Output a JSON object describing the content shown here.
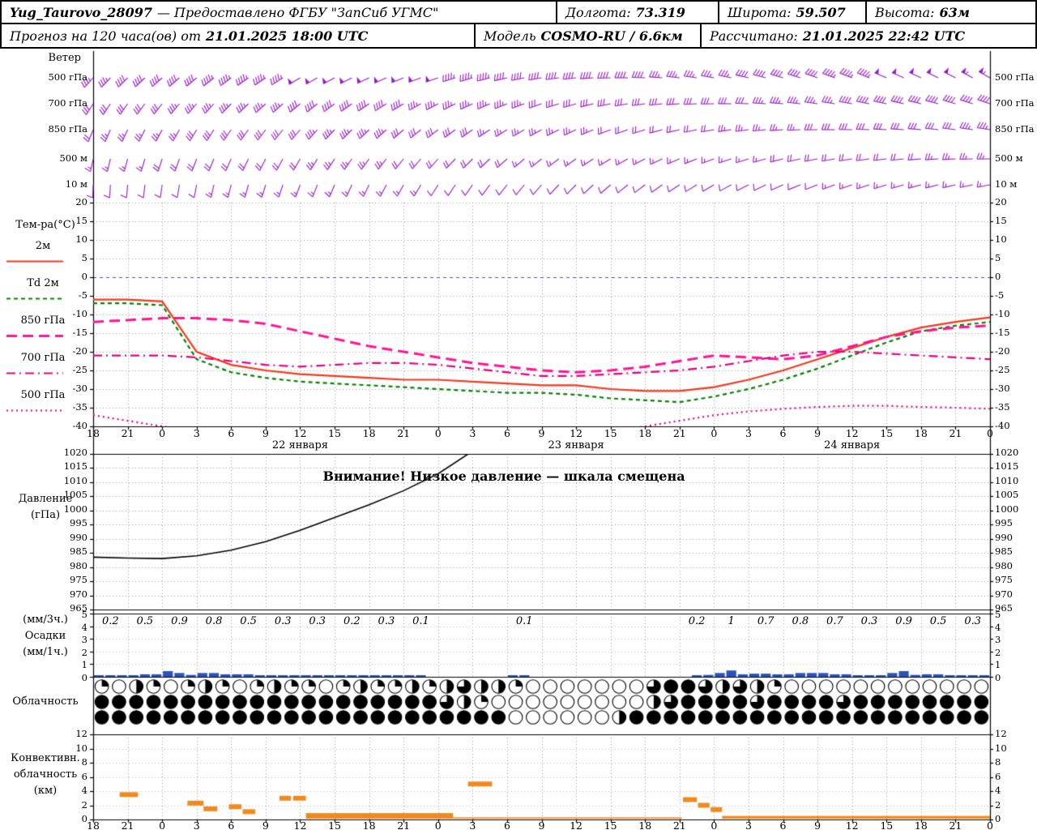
{
  "header": {
    "row1": {
      "station": "Yug_Taurovo_28097",
      "provider": "— Предоставлено ФГБУ \"ЗапСиб УГМС\"",
      "lon_label": "Долгота:",
      "lon_value": "73.319",
      "lat_label": "Широта:",
      "lat_value": "59.507",
      "alt_label": "Высота:",
      "alt_value": "63м"
    },
    "row2": {
      "forecast_label": "Прогноз на 120 часа(ов) от",
      "forecast_value": "21.01.2025 18:00 UTC",
      "model_label": "Модель",
      "model_value": "COSMO-RU / 6.6км",
      "calc_label": "Рассчитано:",
      "calc_value": "21.01.2025 22:42 UTC"
    }
  },
  "axis": {
    "hour_labels": [
      "18",
      "21",
      "0",
      "3",
      "6",
      "9",
      "12",
      "15",
      "18",
      "21",
      "0",
      "3",
      "6",
      "9",
      "12",
      "15",
      "18",
      "21",
      "0",
      "3",
      "6",
      "9",
      "12",
      "15",
      "18",
      "21",
      "0"
    ],
    "date_labels": [
      {
        "text": "22 января",
        "hour": 18
      },
      {
        "text": "23 января",
        "hour": 42
      },
      {
        "text": "24 января",
        "hour": 66
      }
    ]
  },
  "chart_data": [
    {
      "type": "wind-barbs",
      "panel": "wind",
      "title": "Ветер",
      "color": "#9318c8",
      "levels": [
        {
          "label": "500 гПа",
          "dirs": [
            222,
            225,
            228,
            230,
            233,
            236,
            239,
            242,
            245,
            248,
            251,
            254,
            257,
            260,
            264,
            268,
            272,
            276,
            280,
            283,
            286,
            289,
            291,
            293,
            295,
            297,
            299
          ],
          "speeds_kt": [
            35,
            38,
            40,
            42,
            45,
            45,
            48,
            50,
            52,
            50,
            48,
            45,
            42,
            40,
            40,
            38,
            38,
            35,
            35,
            38,
            40,
            42,
            45,
            48,
            50,
            52,
            54
          ]
        },
        {
          "label": "700 гПа",
          "dirs": [
            212,
            215,
            218,
            221,
            224,
            227,
            230,
            233,
            236,
            239,
            242,
            245,
            248,
            251,
            254,
            258,
            262,
            266,
            269,
            272,
            275,
            278,
            280,
            282,
            284,
            286,
            288
          ],
          "speeds_kt": [
            28,
            30,
            32,
            34,
            35,
            36,
            38,
            40,
            40,
            38,
            36,
            35,
            34,
            32,
            30,
            30,
            28,
            28,
            30,
            32,
            34,
            36,
            38,
            38,
            40,
            42,
            42
          ]
        },
        {
          "label": "850 гПа",
          "dirs": [
            202,
            205,
            208,
            211,
            214,
            217,
            220,
            223,
            226,
            229,
            232,
            235,
            238,
            241,
            245,
            249,
            253,
            257,
            260,
            263,
            266,
            269,
            271,
            273,
            275,
            277,
            279
          ],
          "speeds_kt": [
            22,
            24,
            26,
            28,
            30,
            30,
            32,
            34,
            34,
            32,
            30,
            28,
            26,
            25,
            24,
            22,
            20,
            20,
            22,
            24,
            26,
            28,
            30,
            30,
            32,
            32,
            34
          ]
        },
        {
          "label": "500 м",
          "dirs": [
            192,
            195,
            198,
            201,
            204,
            207,
            210,
            213,
            216,
            219,
            222,
            225,
            228,
            231,
            235,
            239,
            243,
            247,
            250,
            253,
            256,
            259,
            261,
            263,
            265,
            267,
            269
          ],
          "speeds_kt": [
            15,
            16,
            18,
            20,
            20,
            22,
            22,
            24,
            24,
            22,
            20,
            18,
            18,
            16,
            15,
            14,
            14,
            14,
            15,
            16,
            18,
            20,
            20,
            22,
            22,
            24,
            24
          ]
        },
        {
          "label": "10 м",
          "dirs": [
            182,
            185,
            188,
            191,
            194,
            197,
            200,
            203,
            206,
            209,
            212,
            215,
            218,
            221,
            225,
            229,
            233,
            237,
            240,
            243,
            246,
            249,
            251,
            253,
            255,
            257,
            259
          ],
          "speeds_kt": [
            10,
            10,
            12,
            12,
            14,
            14,
            15,
            15,
            14,
            14,
            12,
            12,
            10,
            10,
            10,
            8,
            8,
            8,
            10,
            10,
            12,
            12,
            14,
            14,
            15,
            16,
            16
          ]
        }
      ]
    },
    {
      "type": "line",
      "panel": "temperature",
      "title": "Тем-ра(°C)",
      "ylim": [
        -40,
        20
      ],
      "yticks": [
        20,
        15,
        10,
        5,
        0,
        -5,
        -10,
        -15,
        -20,
        -25,
        -30,
        -35,
        -40
      ],
      "x_step_hours": 3,
      "zero_line_color": "#4444ee",
      "series": [
        {
          "name": "2м",
          "color": "#f03a20",
          "style": "solid",
          "values": [
            -6,
            -6,
            -6.5,
            -20,
            -23.5,
            -25,
            -26,
            -26.5,
            -27,
            -27.5,
            -27.5,
            -28,
            -28.5,
            -29,
            -29,
            -30,
            -30.5,
            -30.5,
            -29.5,
            -27.5,
            -25,
            -22,
            -19,
            -16,
            -13.5,
            -12,
            -10.8
          ]
        },
        {
          "name": "Td 2м",
          "color": "#058205",
          "style": "dashed",
          "values": [
            -7,
            -7,
            -7.5,
            -22,
            -25.5,
            -27,
            -28,
            -28.5,
            -29,
            -29.5,
            -30,
            -30.5,
            -31,
            -31,
            -31.5,
            -32.5,
            -33,
            -33.5,
            -32,
            -30,
            -27.5,
            -24.5,
            -21,
            -17.5,
            -14.5,
            -13,
            -12
          ]
        },
        {
          "name": "850 гПа",
          "color": "#ff1493",
          "style": "longdash",
          "values": [
            -12,
            -11.5,
            -11,
            -11,
            -11.5,
            -12.5,
            -14.5,
            -16.5,
            -18.5,
            -20,
            -21.5,
            -23,
            -24,
            -25,
            -25.5,
            -25,
            -24,
            -22.5,
            -21,
            -21.5,
            -22,
            -21,
            -18.5,
            -16,
            -14.5,
            -13.5,
            -13
          ]
        },
        {
          "name": "700 гПа",
          "color": "#e4007c",
          "style": "dashdot",
          "values": [
            -21,
            -21,
            -21,
            -21.5,
            -22.5,
            -23.5,
            -24,
            -23.5,
            -23,
            -23,
            -23.5,
            -24.5,
            -25.5,
            -26.5,
            -26.5,
            -26,
            -25.5,
            -25,
            -24,
            -22.5,
            -21,
            -20,
            -20,
            -20.5,
            -21,
            -21.5,
            -22
          ]
        },
        {
          "name": "500 гПа",
          "color": "#e4007c",
          "style": "dotted",
          "values": [
            -37,
            -38.5,
            -40,
            -41.5,
            -42.5,
            -43,
            -43.5,
            -43.5,
            -43.5,
            -43.5,
            -43.5,
            -43.5,
            -43,
            -43,
            -42.5,
            -41.5,
            -40,
            -38.5,
            -37,
            -36,
            -35.3,
            -34.8,
            -34.5,
            -34.5,
            -34.8,
            -35,
            -35.3
          ]
        }
      ]
    },
    {
      "type": "line",
      "panel": "pressure",
      "title": "Давление",
      "title2": "(гПа)",
      "warning": "Внимание! Низкое давление — шкала смещена",
      "ylim": [
        965,
        1020
      ],
      "yticks": [
        1020,
        1015,
        1010,
        1005,
        1000,
        995,
        990,
        985,
        980,
        975,
        970,
        965
      ],
      "off_scale_high": true,
      "series": [
        {
          "name": "Давление",
          "color": "#000000",
          "style": "solid",
          "values": [
            983.5,
            983.2,
            983,
            984,
            986,
            989,
            993,
            997.5,
            1002,
            1007,
            1013,
            1021,
            1028,
            null,
            null,
            null,
            null,
            null,
            null,
            null,
            null,
            null,
            null,
            null,
            null,
            null,
            null
          ]
        }
      ]
    },
    {
      "type": "bar",
      "panel": "precipitation",
      "title_top": "(мм/3ч.)",
      "title_mid": "Осадки",
      "title_bottom": "(мм/1ч.)",
      "ylim": [
        0,
        5
      ],
      "yticks": [
        5,
        4,
        3,
        2,
        1,
        0
      ],
      "bar_color": "#2a52be",
      "labels_3h": [
        "0.2",
        "0.5",
        "0.9",
        "0.8",
        "0.5",
        "0.3",
        "0.3",
        "0.2",
        "0.3",
        "0.1",
        null,
        null,
        "0.1",
        null,
        null,
        null,
        null,
        "0.2",
        "1",
        "0.7",
        "0.8",
        "0.7",
        "0.3",
        "0.9",
        "0.5",
        "0.3"
      ],
      "hourly_values": [
        0.05,
        0.1,
        0.05,
        0.1,
        0.2,
        0.2,
        0.45,
        0.3,
        0.15,
        0.3,
        0.3,
        0.2,
        0.2,
        0.2,
        0.1,
        0.1,
        0.1,
        0.1,
        0.1,
        0.1,
        0.1,
        0.05,
        0.1,
        0.05,
        0.1,
        0.1,
        0.1,
        0.05,
        0.05,
        0,
        0,
        0,
        0,
        0,
        0,
        0,
        0.05,
        0.05,
        0,
        0,
        0,
        0,
        0,
        0,
        0,
        0,
        0,
        0,
        0,
        0,
        0,
        0,
        0.05,
        0.15,
        0.3,
        0.5,
        0.2,
        0.25,
        0.25,
        0.2,
        0.2,
        0.3,
        0.3,
        0.3,
        0.2,
        0.2,
        0.1,
        0.1,
        0.1,
        0.3,
        0.45,
        0.15,
        0.2,
        0.2,
        0.1,
        0.1,
        0.1,
        0.1
      ]
    },
    {
      "type": "cloud-symbols",
      "panel": "cloudiness",
      "title": "Облачность",
      "rows": [
        [
          0.25,
          0,
          0.5,
          0.25,
          0,
          0.25,
          0.5,
          0.25,
          0,
          0.25,
          0.5,
          0.25,
          0.25,
          0,
          0.25,
          0.5,
          0.25,
          0.25,
          0.5,
          0.25,
          0.5,
          0.75,
          0.5,
          0.5,
          0.25,
          0,
          0,
          0,
          0,
          0,
          0,
          0,
          0.75,
          1,
          1,
          0.75,
          0.5,
          0.75,
          0.5,
          0.25,
          0,
          0,
          0,
          0,
          0,
          0,
          0,
          0,
          0,
          0,
          0,
          0
        ],
        [
          1,
          1,
          1,
          1,
          1,
          1,
          1,
          1,
          1,
          1,
          1,
          1,
          1,
          1,
          1,
          1,
          1,
          1,
          1,
          1,
          0.75,
          0.5,
          0.25,
          0,
          0,
          0,
          0,
          0,
          0,
          0,
          0,
          0,
          0.5,
          0.75,
          1,
          1,
          1,
          1,
          0.75,
          1,
          1,
          1,
          1,
          0.75,
          1,
          1,
          1,
          1,
          1,
          1,
          1,
          1
        ],
        [
          1,
          1,
          1,
          1,
          1,
          1,
          1,
          1,
          1,
          1,
          1,
          1,
          1,
          1,
          1,
          1,
          1,
          1,
          1,
          1,
          1,
          1,
          1,
          1,
          0,
          0,
          0,
          0,
          0,
          0,
          0.5,
          1,
          1,
          1,
          1,
          1,
          1,
          1,
          1,
          1,
          1,
          1,
          1,
          1,
          1,
          1,
          1,
          1,
          1,
          1,
          1,
          1
        ]
      ]
    },
    {
      "type": "segments",
      "panel": "convective",
      "title_lines": [
        "Конвективн.",
        "облачность",
        "(км)"
      ],
      "ylim": [
        0,
        12
      ],
      "yticks": [
        12,
        10,
        8,
        6,
        4,
        2,
        0
      ],
      "color": "#ef8a1f",
      "segments": [
        {
          "from_h": 2.3,
          "to_h": 3.9,
          "km": 3.5
        },
        {
          "from_h": 8.2,
          "to_h": 9.6,
          "km": 2.3
        },
        {
          "from_h": 9.6,
          "to_h": 10.8,
          "km": 1.5
        },
        {
          "from_h": 11.8,
          "to_h": 12.9,
          "km": 1.8
        },
        {
          "from_h": 13.0,
          "to_h": 14.1,
          "km": 1.1
        },
        {
          "from_h": 16.2,
          "to_h": 17.2,
          "km": 3.0
        },
        {
          "from_h": 17.4,
          "to_h": 18.5,
          "km": 3.0
        },
        {
          "from_h": 18.5,
          "to_h": 31.3,
          "km": 0.9
        },
        {
          "from_h": 32.6,
          "to_h": 34.7,
          "km": 5.0
        },
        {
          "from_h": 31.3,
          "to_h": 51.2,
          "km": 0.3
        },
        {
          "from_h": 51.3,
          "to_h": 52.5,
          "km": 2.8
        },
        {
          "from_h": 52.6,
          "to_h": 53.6,
          "km": 2.0
        },
        {
          "from_h": 53.7,
          "to_h": 54.7,
          "km": 1.4
        },
        {
          "from_h": 54.7,
          "to_h": 78,
          "km": 0.5
        }
      ]
    }
  ]
}
